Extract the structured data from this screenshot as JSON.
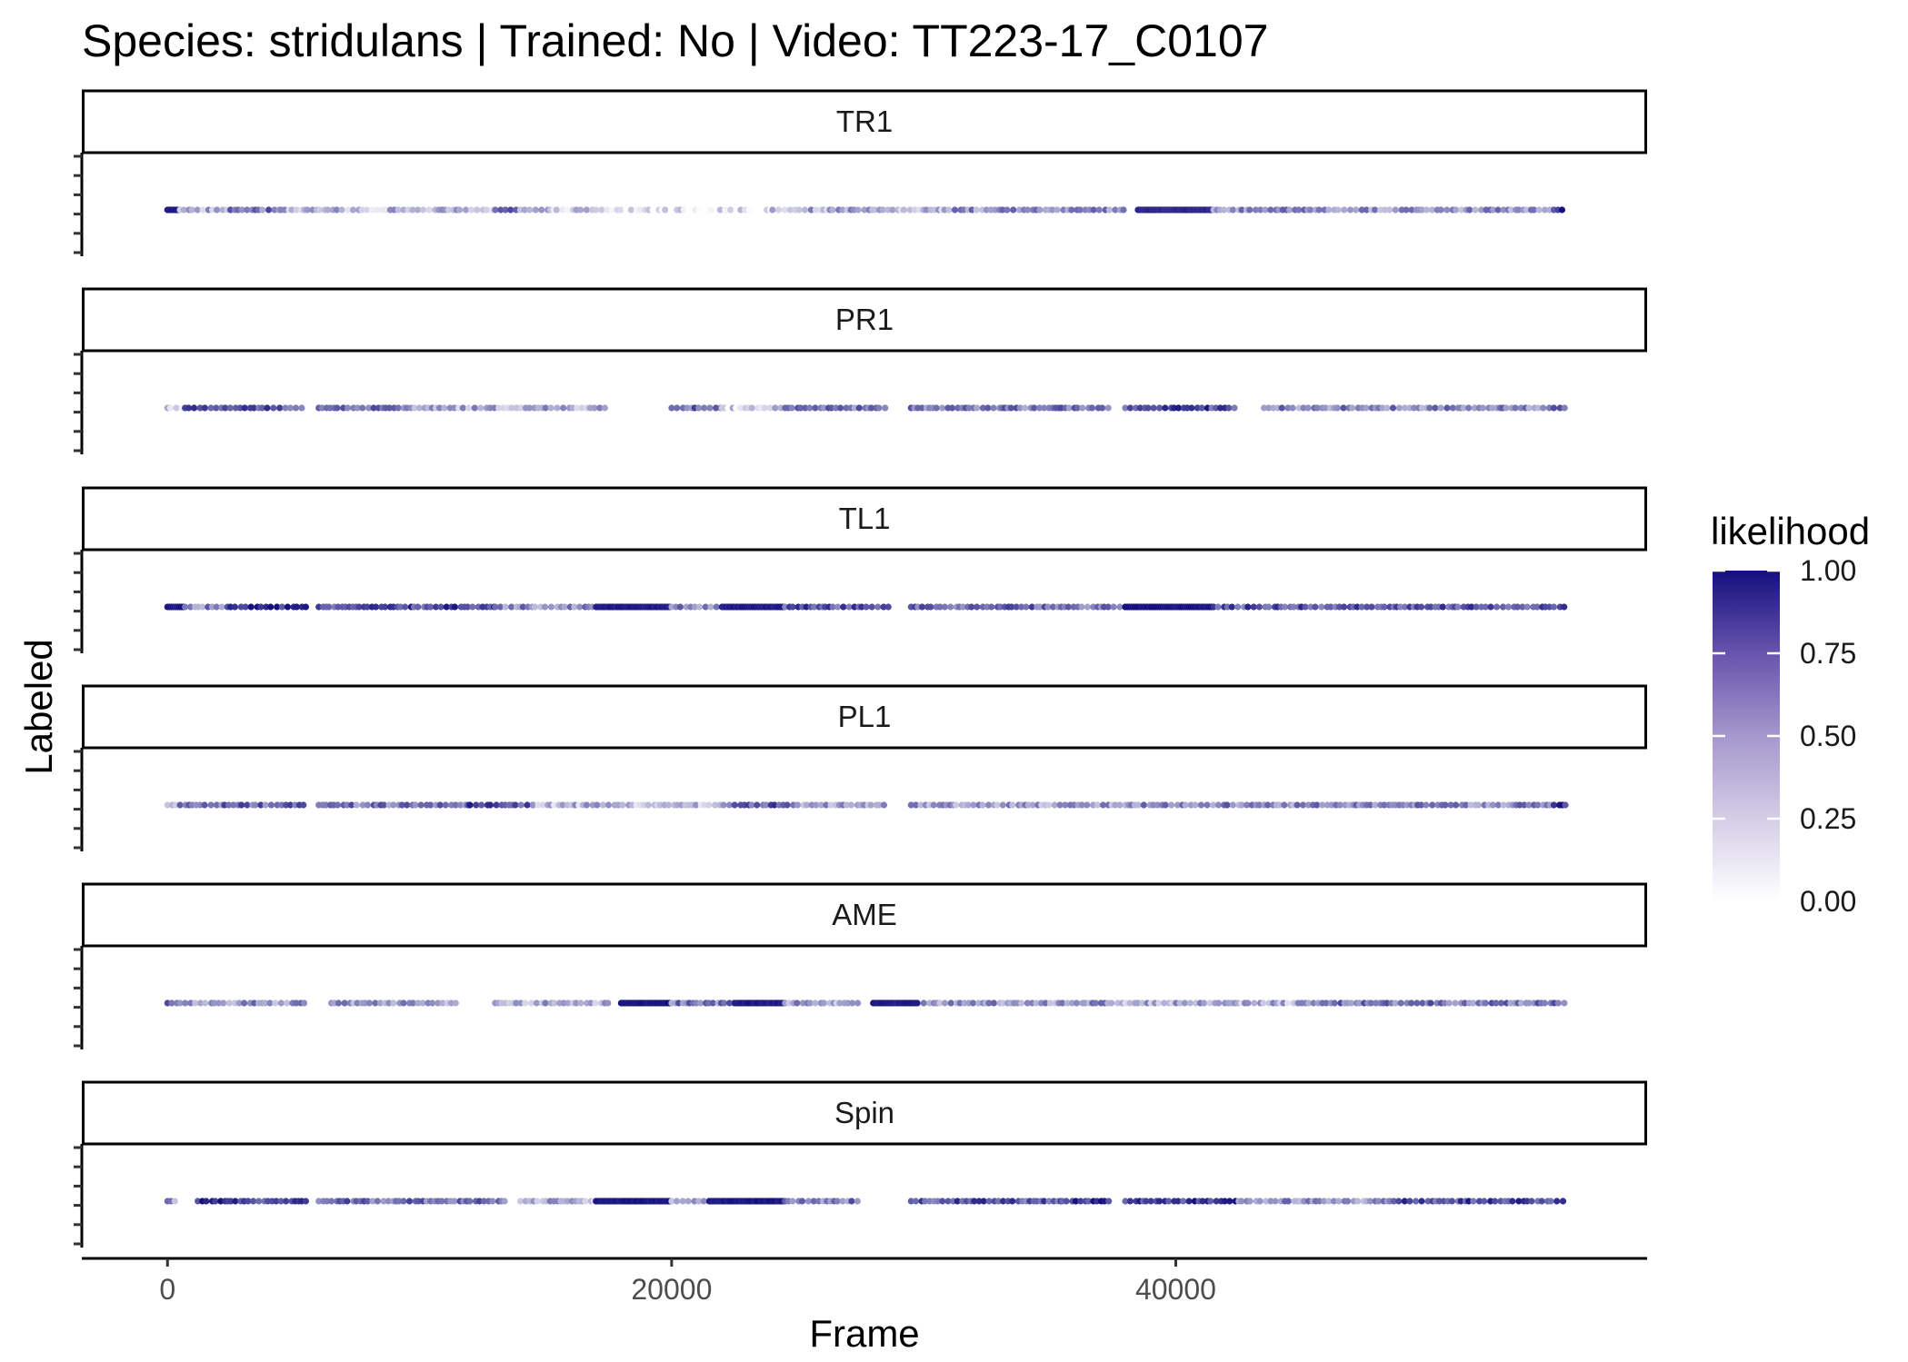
{
  "chart_data": {
    "type": "scatter",
    "title": "Species: stridulans | Trained: No | Video: TT223-17_C0107",
    "xlabel": "Frame",
    "ylabel": "Labeled",
    "xlim": [
      -3400,
      58700
    ],
    "x_ticks": [
      0,
      20000,
      40000
    ],
    "x_tick_labels": [
      "0",
      "20000",
      "40000"
    ],
    "x_range_data": [
      0,
      55500
    ],
    "facets": [
      "TR1",
      "PR1",
      "TL1",
      "PL1",
      "AME",
      "Spin"
    ],
    "color_scale": {
      "name": "likelihood",
      "low": "#ffffff",
      "high": "#15107e",
      "breaks": [
        1.0,
        0.75,
        0.5,
        0.25,
        0.0
      ],
      "break_labels": [
        "1.00",
        "0.75",
        "0.50",
        "0.25",
        "0.00"
      ]
    },
    "series": [
      {
        "name": "TR1",
        "segments": [
          {
            "x": [
              0,
              500
            ],
            "likelihood": 0.95
          },
          {
            "x": [
              500,
              2500
            ],
            "likelihood": 0.35
          },
          {
            "x": [
              2500,
              4500
            ],
            "likelihood": 0.55
          },
          {
            "x": [
              4500,
              13000
            ],
            "likelihood": 0.3
          },
          {
            "x": [
              13000,
              14000
            ],
            "likelihood": 0.7
          },
          {
            "x": [
              14000,
              17000
            ],
            "likelihood": 0.25
          },
          {
            "x": [
              17000,
              24000
            ],
            "likelihood": 0.12
          },
          {
            "x": [
              24000,
              31000
            ],
            "likelihood": 0.35
          },
          {
            "x": [
              31000,
              38000
            ],
            "likelihood": 0.45
          },
          {
            "x": [
              38500,
              41500
            ],
            "likelihood": 0.9
          },
          {
            "x": [
              41500,
              55000
            ],
            "likelihood": 0.45
          },
          {
            "x": [
              55000,
              55500
            ],
            "likelihood": 0.85
          }
        ]
      },
      {
        "name": "PR1",
        "segments": [
          {
            "x": [
              0,
              700
            ],
            "likelihood": 0.25
          },
          {
            "x": [
              700,
              5500
            ],
            "likelihood": 0.7
          },
          {
            "x": [
              6000,
              9500
            ],
            "likelihood": 0.6
          },
          {
            "x": [
              9500,
              17500
            ],
            "likelihood": 0.35
          },
          {
            "x": [
              20000,
              22000
            ],
            "likelihood": 0.6
          },
          {
            "x": [
              22000,
              24500
            ],
            "likelihood": 0.2
          },
          {
            "x": [
              24500,
              28700
            ],
            "likelihood": 0.55
          },
          {
            "x": [
              29500,
              37500
            ],
            "likelihood": 0.55
          },
          {
            "x": [
              38000,
              42500
            ],
            "likelihood": 0.75
          },
          {
            "x": [
              43500,
              55000
            ],
            "likelihood": 0.5
          },
          {
            "x": [
              55000,
              55500
            ],
            "likelihood": 0.7
          }
        ]
      },
      {
        "name": "TL1",
        "segments": [
          {
            "x": [
              0,
              700
            ],
            "likelihood": 0.95
          },
          {
            "x": [
              700,
              2500
            ],
            "likelihood": 0.5
          },
          {
            "x": [
              2500,
              5500
            ],
            "likelihood": 0.85
          },
          {
            "x": [
              6000,
              13000
            ],
            "likelihood": 0.75
          },
          {
            "x": [
              13000,
              17000
            ],
            "likelihood": 0.5
          },
          {
            "x": [
              17000,
              20000
            ],
            "likelihood": 0.95
          },
          {
            "x": [
              20000,
              22000
            ],
            "likelihood": 0.5
          },
          {
            "x": [
              22000,
              24500
            ],
            "likelihood": 0.95
          },
          {
            "x": [
              24500,
              28700
            ],
            "likelihood": 0.7
          },
          {
            "x": [
              29500,
              38000
            ],
            "likelihood": 0.6
          },
          {
            "x": [
              38000,
              41500
            ],
            "likelihood": 0.98
          },
          {
            "x": [
              41500,
              55500
            ],
            "likelihood": 0.7
          }
        ]
      },
      {
        "name": "PL1",
        "segments": [
          {
            "x": [
              0,
              500
            ],
            "likelihood": 0.1
          },
          {
            "x": [
              500,
              5500
            ],
            "likelihood": 0.6
          },
          {
            "x": [
              6000,
              12000
            ],
            "likelihood": 0.55
          },
          {
            "x": [
              12000,
              14500
            ],
            "likelihood": 0.75
          },
          {
            "x": [
              14500,
              22500
            ],
            "likelihood": 0.3
          },
          {
            "x": [
              22500,
              25000
            ],
            "likelihood": 0.7
          },
          {
            "x": [
              25000,
              28500
            ],
            "likelihood": 0.35
          },
          {
            "x": [
              29500,
              38000
            ],
            "likelihood": 0.4
          },
          {
            "x": [
              38000,
              55000
            ],
            "likelihood": 0.5
          },
          {
            "x": [
              55000,
              55500
            ],
            "likelihood": 0.8
          }
        ]
      },
      {
        "name": "AME",
        "segments": [
          {
            "x": [
              0,
              500
            ],
            "likelihood": 0.6
          },
          {
            "x": [
              500,
              5500
            ],
            "likelihood": 0.45
          },
          {
            "x": [
              6500,
              11500
            ],
            "likelihood": 0.4
          },
          {
            "x": [
              13000,
              17500
            ],
            "likelihood": 0.35
          },
          {
            "x": [
              18000,
              20000
            ],
            "likelihood": 0.98
          },
          {
            "x": [
              20000,
              22500
            ],
            "likelihood": 0.55
          },
          {
            "x": [
              22500,
              24500
            ],
            "likelihood": 0.95
          },
          {
            "x": [
              24500,
              27500
            ],
            "likelihood": 0.4
          },
          {
            "x": [
              28000,
              29800
            ],
            "likelihood": 0.95
          },
          {
            "x": [
              30000,
              38000
            ],
            "likelihood": 0.45
          },
          {
            "x": [
              38000,
              45000
            ],
            "likelihood": 0.35
          },
          {
            "x": [
              45000,
              55500
            ],
            "likelihood": 0.55
          }
        ]
      },
      {
        "name": "Spin",
        "segments": [
          {
            "x": [
              0,
              500
            ],
            "likelihood": 0.45
          },
          {
            "x": [
              1200,
              5500
            ],
            "likelihood": 0.8
          },
          {
            "x": [
              6000,
              13500
            ],
            "likelihood": 0.6
          },
          {
            "x": [
              14000,
              17000
            ],
            "likelihood": 0.35
          },
          {
            "x": [
              17000,
              20000
            ],
            "likelihood": 0.97
          },
          {
            "x": [
              20000,
              21500
            ],
            "likelihood": 0.4
          },
          {
            "x": [
              21500,
              24500
            ],
            "likelihood": 0.97
          },
          {
            "x": [
              24500,
              27500
            ],
            "likelihood": 0.55
          },
          {
            "x": [
              29500,
              35500
            ],
            "likelihood": 0.7
          },
          {
            "x": [
              35500,
              37500
            ],
            "likelihood": 0.85
          },
          {
            "x": [
              38000,
              42500
            ],
            "likelihood": 0.8
          },
          {
            "x": [
              42500,
              48500
            ],
            "likelihood": 0.45
          },
          {
            "x": [
              48500,
              55500
            ],
            "likelihood": 0.75
          }
        ]
      }
    ]
  }
}
